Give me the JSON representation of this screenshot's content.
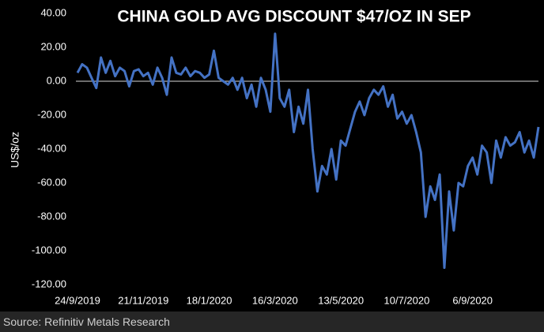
{
  "chart_data": {
    "type": "line",
    "title": "CHINA GOLD AVG DISCOUNT $47/OZ IN SEP",
    "y_label": "US$/oz",
    "source": "Source: Refinitiv Metals Research",
    "categories": [
      "24/9/2019",
      null,
      null,
      null,
      null,
      null,
      null,
      null,
      null,
      null,
      null,
      null,
      null,
      null,
      "21/11/2019",
      null,
      null,
      null,
      null,
      null,
      null,
      null,
      null,
      null,
      null,
      null,
      null,
      null,
      "18/1/2020",
      null,
      null,
      null,
      null,
      null,
      null,
      null,
      null,
      null,
      null,
      null,
      null,
      null,
      "16/3/2020",
      null,
      null,
      null,
      null,
      null,
      null,
      null,
      null,
      null,
      null,
      null,
      null,
      null,
      "13/5/2020",
      null,
      null,
      null,
      null,
      null,
      null,
      null,
      null,
      null,
      null,
      null,
      null,
      null,
      "10/7/2020",
      null,
      null,
      null,
      null,
      null,
      null,
      null,
      null,
      null,
      null,
      null,
      null,
      null,
      "6/9/2020",
      null,
      null,
      null,
      null,
      null,
      null,
      null,
      null,
      null,
      null,
      null,
      null,
      null,
      null
    ],
    "series": [
      {
        "color": "#4472c4",
        "values": [
          5,
          10,
          8,
          2,
          -4,
          14,
          5,
          12,
          3,
          8,
          6,
          -3,
          6,
          7,
          3,
          5,
          -2,
          8,
          2,
          -8,
          14,
          5,
          4,
          8,
          3,
          6,
          5,
          2,
          4,
          18,
          2,
          0,
          -2,
          2,
          -5,
          2,
          -10,
          -2,
          -15,
          2,
          -5,
          -18,
          28,
          -10,
          -15,
          -5,
          -30,
          -15,
          -25,
          -5,
          -40,
          -65,
          -50,
          -55,
          -40,
          -58,
          -35,
          -38,
          -28,
          -18,
          -12,
          -20,
          -10,
          -5,
          -8,
          -3,
          -15,
          -8,
          -22,
          -18,
          -25,
          -20,
          -30,
          -42,
          -80,
          -62,
          -70,
          -55,
          -110,
          -65,
          -88,
          -60,
          -62,
          -50,
          -45,
          -55,
          -38,
          -42,
          -60,
          -35,
          -45,
          -33,
          -38,
          -36,
          -30,
          -42,
          -35,
          -45,
          -27
        ]
      }
    ],
    "ylim": [
      -120,
      40
    ],
    "yticks": [
      {
        "value": 40,
        "label": "40.00"
      },
      {
        "value": 20,
        "label": "20.00"
      },
      {
        "value": 0,
        "label": "0.00"
      },
      {
        "value": -20,
        "label": "-20.00"
      },
      {
        "value": -40,
        "label": "-40.00"
      },
      {
        "value": -60,
        "label": "-60.00"
      },
      {
        "value": -80,
        "label": "-80.00"
      },
      {
        "value": -100,
        "label": "-100.00"
      },
      {
        "value": -120,
        "label": "-120.00"
      }
    ]
  }
}
